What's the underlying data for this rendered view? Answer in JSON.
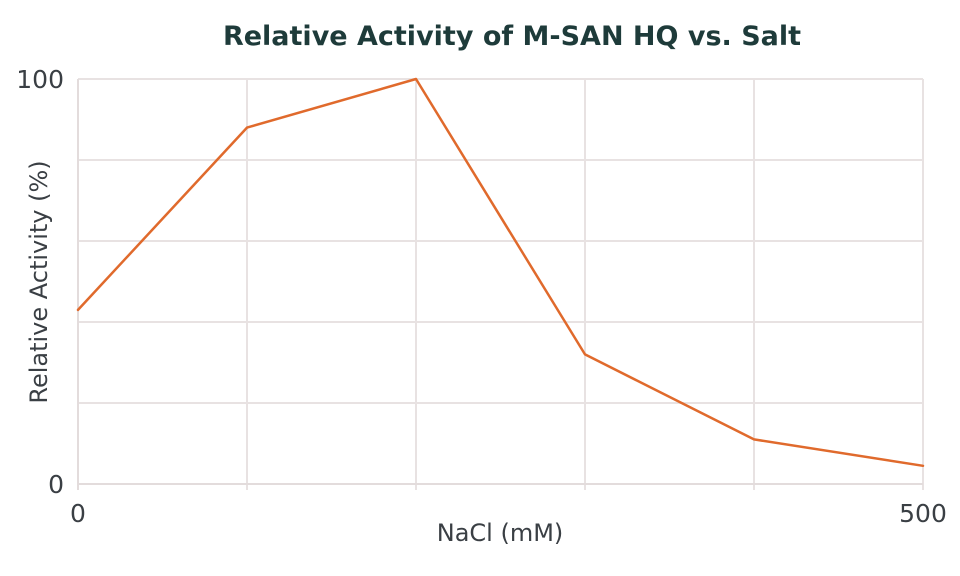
{
  "chart_data": {
    "type": "line",
    "title": "Relative Activity of M-SAN HQ vs. Salt",
    "xlabel": "NaCl (mM)",
    "ylabel": "Relative Activity (%)",
    "x": [
      0,
      100,
      200,
      300,
      400,
      500
    ],
    "series": [
      {
        "values": [
          43,
          88,
          100,
          32,
          11,
          4.5
        ],
        "color": "#e06a2c"
      }
    ],
    "xlim": [
      0,
      500
    ],
    "ylim": [
      0,
      100
    ],
    "x_tick_labels": [
      {
        "value": 0,
        "label": "0"
      },
      {
        "value": 500,
        "label": "500"
      }
    ],
    "y_tick_labels": [
      {
        "value": 0,
        "label": "0"
      },
      {
        "value": 100,
        "label": "100"
      }
    ],
    "x_gridlines": [
      100,
      200,
      300,
      400,
      500
    ],
    "y_gridlines": [
      20,
      40,
      60,
      80,
      100
    ],
    "grid": true,
    "legend": "none",
    "colors": {
      "grid": "#e8e2e2",
      "title": "#1e3b3a",
      "text": "#3a3f44"
    }
  }
}
